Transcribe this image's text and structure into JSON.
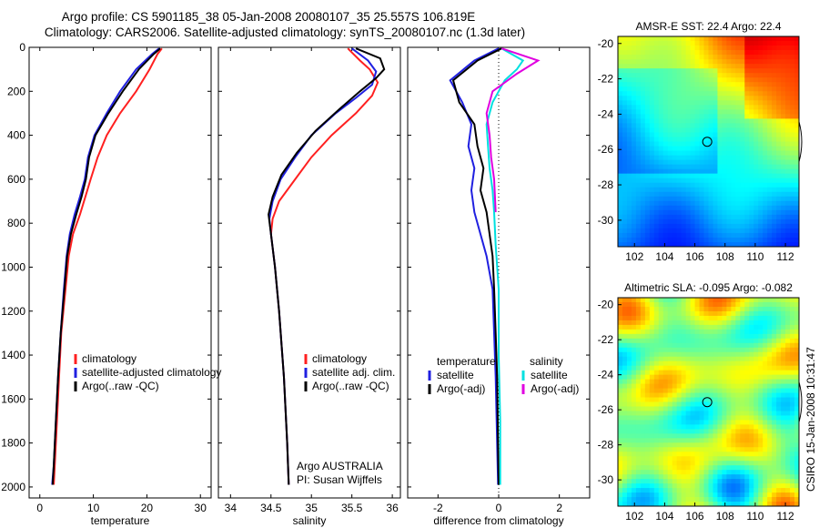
{
  "title_line1": "Argo profile: CS 5901185_38 05-Jan-2008 20080107_35 25.557S 106.819E",
  "title_line2": "Climatology: CARS2006. Satellite-adjusted climatology: synTS_20080107.nc (1.3d later)",
  "footer_credit": "CSIRO 15-Jan-2008 10:31:47",
  "colors": {
    "climatology": "#ff2020",
    "satellite": "#2020e0",
    "argo": "#000000",
    "sal_sat": "#00e0e0",
    "sal_argo": "#e000e0"
  },
  "chart_data": [
    {
      "type": "line",
      "xlabel": "temperature",
      "xlim": [
        -2,
        32
      ],
      "ylim": [
        2050,
        0
      ],
      "xticks": [
        "0",
        "10",
        "20",
        "30"
      ],
      "yticks": [
        "0",
        "200",
        "400",
        "600",
        "800",
        "1000",
        "1200",
        "1400",
        "1600",
        "1800",
        "2000"
      ],
      "legend": [
        "climatology",
        "satellite-adjusted climatology",
        "Argo(..raw -QC)"
      ],
      "series": [
        {
          "name": "climatology",
          "color": "climatology",
          "points": [
            [
              22.8,
              5
            ],
            [
              22.0,
              30
            ],
            [
              20.5,
              100
            ],
            [
              18.0,
              200
            ],
            [
              15.0,
              300
            ],
            [
              12.5,
              400
            ],
            [
              10.8,
              500
            ],
            [
              9.5,
              600
            ],
            [
              8.5,
              680
            ],
            [
              7.5,
              760
            ],
            [
              6.2,
              850
            ],
            [
              5.4,
              950
            ],
            [
              4.8,
              1100
            ],
            [
              4.0,
              1300
            ],
            [
              3.6,
              1500
            ],
            [
              3.2,
              1700
            ],
            [
              2.8,
              1900
            ],
            [
              2.6,
              1990
            ]
          ]
        },
        {
          "name": "satellite-adjusted climatology",
          "color": "satellite",
          "points": [
            [
              22.3,
              5
            ],
            [
              21.0,
              30
            ],
            [
              18.0,
              100
            ],
            [
              15.0,
              200
            ],
            [
              12.5,
              300
            ],
            [
              10.2,
              400
            ],
            [
              9.0,
              500
            ],
            [
              8.4,
              600
            ],
            [
              7.5,
              680
            ],
            [
              6.5,
              760
            ],
            [
              5.6,
              850
            ],
            [
              5.0,
              950
            ],
            [
              4.5,
              1100
            ],
            [
              3.9,
              1300
            ],
            [
              3.4,
              1500
            ],
            [
              3.0,
              1700
            ],
            [
              2.6,
              1900
            ],
            [
              2.3,
              1990
            ]
          ]
        },
        {
          "name": "Argo(..raw -QC)",
          "color": "argo",
          "points": [
            [
              22.5,
              5
            ],
            [
              21.3,
              30
            ],
            [
              18.5,
              100
            ],
            [
              15.5,
              200
            ],
            [
              12.8,
              300
            ],
            [
              10.4,
              400
            ],
            [
              9.2,
              500
            ],
            [
              8.6,
              600
            ],
            [
              7.8,
              680
            ],
            [
              6.8,
              760
            ],
            [
              5.8,
              850
            ],
            [
              5.1,
              950
            ],
            [
              4.6,
              1100
            ],
            [
              3.9,
              1300
            ],
            [
              3.4,
              1500
            ],
            [
              3.0,
              1700
            ],
            [
              2.6,
              1900
            ],
            [
              2.4,
              1990
            ]
          ]
        }
      ]
    },
    {
      "type": "line",
      "xlabel": "salinity",
      "xlim": [
        33.85,
        36.1
      ],
      "ylim": [
        2050,
        0
      ],
      "xticks": [
        "34",
        "34.5",
        "35",
        "35.5",
        "36"
      ],
      "legend": [
        "climatology",
        "satellite adj. clim.",
        "Argo(..raw -QC)"
      ],
      "annotation": [
        "Argo AUSTRALIA",
        "PI: Susan Wijffels"
      ],
      "series": [
        {
          "name": "climatology",
          "color": "climatology",
          "points": [
            [
              35.45,
              5
            ],
            [
              35.6,
              60
            ],
            [
              35.72,
              100
            ],
            [
              35.82,
              160
            ],
            [
              35.75,
              220
            ],
            [
              35.55,
              300
            ],
            [
              35.25,
              400
            ],
            [
              35.0,
              500
            ],
            [
              34.8,
              600
            ],
            [
              34.6,
              700
            ],
            [
              34.52,
              780
            ],
            [
              34.5,
              850
            ],
            [
              34.55,
              1000
            ],
            [
              34.6,
              1200
            ],
            [
              34.66,
              1500
            ],
            [
              34.7,
              1800
            ],
            [
              34.72,
              1990
            ]
          ]
        },
        {
          "name": "satellite adj. clim.",
          "color": "satellite",
          "points": [
            [
              35.5,
              5
            ],
            [
              35.7,
              60
            ],
            [
              35.8,
              110
            ],
            [
              35.75,
              170
            ],
            [
              35.55,
              230
            ],
            [
              35.3,
              300
            ],
            [
              35.0,
              400
            ],
            [
              34.8,
              500
            ],
            [
              34.62,
              600
            ],
            [
              34.52,
              700
            ],
            [
              34.48,
              780
            ],
            [
              34.5,
              850
            ],
            [
              34.55,
              1000
            ],
            [
              34.6,
              1200
            ],
            [
              34.66,
              1500
            ],
            [
              34.7,
              1800
            ],
            [
              34.72,
              1990
            ]
          ]
        },
        {
          "name": "Argo(..raw -QC)",
          "color": "argo",
          "points": [
            [
              35.55,
              5
            ],
            [
              35.85,
              50
            ],
            [
              35.9,
              100
            ],
            [
              35.8,
              140
            ],
            [
              35.6,
              200
            ],
            [
              35.35,
              280
            ],
            [
              35.05,
              380
            ],
            [
              34.82,
              480
            ],
            [
              34.63,
              580
            ],
            [
              34.52,
              680
            ],
            [
              34.47,
              760
            ],
            [
              34.5,
              850
            ],
            [
              34.55,
              1000
            ],
            [
              34.6,
              1200
            ],
            [
              34.66,
              1500
            ],
            [
              34.7,
              1800
            ],
            [
              34.72,
              1990
            ]
          ]
        }
      ]
    },
    {
      "type": "line",
      "xlabel": "difference from climatology",
      "xlim": [
        -3,
        3
      ],
      "ylim": [
        2050,
        0
      ],
      "xticks": [
        "-2",
        "0",
        "2"
      ],
      "legend_headers": [
        "temperature",
        "salinity"
      ],
      "legend": [
        "satellite",
        "Argo(-adj)",
        "satellite",
        "Argo(-adj)"
      ],
      "series": [
        {
          "name": "satellite",
          "color": "satellite",
          "points": [
            [
              0,
              5
            ],
            [
              -0.8,
              60
            ],
            [
              -1.6,
              150
            ],
            [
              -1.2,
              250
            ],
            [
              -0.9,
              350
            ],
            [
              -1.0,
              450
            ],
            [
              -0.8,
              550
            ],
            [
              -0.9,
              650
            ],
            [
              -0.8,
              750
            ],
            [
              -0.6,
              850
            ],
            [
              -0.4,
              950
            ],
            [
              -0.2,
              1100
            ],
            [
              -0.15,
              1300
            ],
            [
              -0.1,
              1500
            ],
            [
              -0.05,
              1800
            ],
            [
              -0.02,
              1990
            ]
          ]
        },
        {
          "name": "Argo(-adj)",
          "color": "argo",
          "points": [
            [
              0.1,
              5
            ],
            [
              -0.7,
              60
            ],
            [
              -1.5,
              150
            ],
            [
              -1.3,
              250
            ],
            [
              -0.8,
              350
            ],
            [
              -0.7,
              450
            ],
            [
              -0.5,
              550
            ],
            [
              -0.6,
              650
            ],
            [
              -0.4,
              750
            ],
            [
              -0.3,
              850
            ],
            [
              -0.2,
              950
            ],
            [
              -0.15,
              1100
            ],
            [
              -0.1,
              1300
            ],
            [
              -0.05,
              1500
            ],
            [
              -0.02,
              1800
            ],
            [
              0.0,
              1990
            ]
          ]
        },
        {
          "name": "satellite",
          "color": "sal_sat",
          "points": [
            [
              0.1,
              5
            ],
            [
              0.8,
              60
            ],
            [
              0.6,
              100
            ],
            [
              0.2,
              150
            ],
            [
              -0.2,
              250
            ],
            [
              -0.4,
              350
            ],
            [
              -0.35,
              450
            ],
            [
              -0.3,
              550
            ],
            [
              -0.2,
              650
            ],
            [
              -0.15,
              750
            ],
            [
              -0.1,
              900
            ],
            [
              0.0,
              1100
            ],
            [
              0.0,
              1400
            ],
            [
              0.05,
              1700
            ],
            [
              0.05,
              1990
            ]
          ]
        },
        {
          "name": "Argo(-adj)",
          "color": "sal_argo",
          "points": [
            [
              0.1,
              5
            ],
            [
              1.3,
              60
            ],
            [
              0.6,
              120
            ],
            [
              -0.2,
              200
            ],
            [
              -0.4,
              300
            ],
            [
              -0.3,
              400
            ],
            [
              -0.25,
              500
            ],
            [
              -0.15,
              600
            ],
            [
              -0.1,
              750
            ]
          ]
        }
      ]
    },
    {
      "type": "heatmap",
      "title": "AMSR-E SST: 22.4  Argo: 22.4",
      "xticks": [
        "102",
        "104",
        "106",
        "108",
        "110",
        "112"
      ],
      "yticks": [
        "-20",
        "-22",
        "-24",
        "-26",
        "-28",
        "-30"
      ],
      "xlim": [
        100.9,
        112.9
      ],
      "ylim": [
        -31.5,
        -19.6
      ],
      "marker": [
        106.82,
        -25.56
      ]
    },
    {
      "type": "heatmap",
      "title": "Altimetric SLA: -0.095  Argo: -0.082",
      "xticks": [
        "102",
        "104",
        "106",
        "108",
        "110",
        "112"
      ],
      "yticks": [
        "-20",
        "-22",
        "-24",
        "-26",
        "-28",
        "-30"
      ],
      "xlim": [
        100.9,
        112.9
      ],
      "ylim": [
        -31.5,
        -19.6
      ],
      "marker": [
        106.82,
        -25.56
      ]
    }
  ]
}
